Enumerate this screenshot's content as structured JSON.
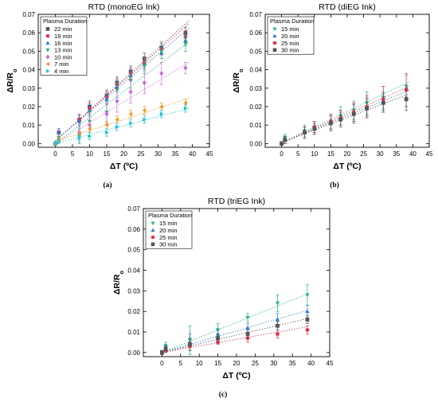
{
  "chart_data": [
    {
      "type": "scatter",
      "id": "a",
      "caption": "(a)",
      "title": "RTD (monoEG Ink)",
      "xlabel": "ΔT (ºC)",
      "ylabel": "ΔR/R",
      "ylabel_sub": "o",
      "xlim": [
        -5,
        45
      ],
      "ylim": [
        -0.002,
        0.07
      ],
      "xticks": [
        "0",
        "5",
        "10",
        "15",
        "20",
        "25",
        "30",
        "35",
        "40",
        "45"
      ],
      "yticks": [
        "0.00",
        "0.01",
        "0.02",
        "0.03",
        "0.04",
        "0.05",
        "0.06",
        "0.07"
      ],
      "legend_title": "Plasma Duration",
      "legend_position": "top-left",
      "series": [
        {
          "name": "22 min",
          "color": "#555555",
          "marker": "square",
          "x": [
            0,
            1,
            7,
            10,
            15,
            18,
            22,
            26,
            31,
            38
          ],
          "y": [
            0.0,
            0.006,
            0.013,
            0.02,
            0.026,
            0.033,
            0.039,
            0.046,
            0.052,
            0.06
          ],
          "err": [
            0.001,
            0.002,
            0.003,
            0.003,
            0.003,
            0.003,
            0.003,
            0.003,
            0.003,
            0.003
          ],
          "fit": [
            [
              0,
              0.0015
            ],
            [
              39,
              0.0665
            ]
          ]
        },
        {
          "name": "19 min",
          "color": "#e8334a",
          "marker": "circle",
          "x": [
            0,
            1,
            7,
            10,
            15,
            18,
            22,
            26,
            31,
            38
          ],
          "y": [
            0.0,
            0.006,
            0.013,
            0.019,
            0.025,
            0.032,
            0.038,
            0.044,
            0.051,
            0.058
          ],
          "err": [
            0.001,
            0.002,
            0.003,
            0.003,
            0.003,
            0.003,
            0.003,
            0.003,
            0.003,
            0.003
          ],
          "fit": [
            [
              0,
              0.0015
            ],
            [
              39,
              0.065
            ]
          ]
        },
        {
          "name": "16 min",
          "color": "#2b7bd6",
          "marker": "triangle-up",
          "x": [
            0,
            1,
            7,
            10,
            15,
            18,
            22,
            26,
            31,
            38
          ],
          "y": [
            0.0,
            0.006,
            0.012,
            0.018,
            0.024,
            0.031,
            0.037,
            0.043,
            0.049,
            0.056
          ],
          "err": [
            0.001,
            0.002,
            0.003,
            0.003,
            0.003,
            0.003,
            0.003,
            0.003,
            0.003,
            0.003
          ],
          "fit": [
            [
              0,
              0.0015
            ],
            [
              39,
              0.0625
            ]
          ]
        },
        {
          "name": "13 min",
          "color": "#24b37a",
          "marker": "triangle-down",
          "x": [
            0,
            1,
            7,
            10,
            15,
            18,
            22,
            26,
            31,
            38
          ],
          "y": [
            0.0,
            0.003,
            0.004,
            0.012,
            0.017,
            0.029,
            0.034,
            0.042,
            0.05,
            0.054
          ],
          "err": [
            0.001,
            0.002,
            0.004,
            0.006,
            0.006,
            0.004,
            0.004,
            0.004,
            0.004,
            0.004
          ],
          "fit": [
            [
              0,
              0.0
            ],
            [
              39,
              0.055
            ]
          ]
        },
        {
          "name": "10 min",
          "color": "#c86ed8",
          "marker": "diamond",
          "x": [
            0,
            1,
            7,
            10,
            15,
            18,
            22,
            26,
            31,
            38
          ],
          "y": [
            0.0,
            0.002,
            0.006,
            0.01,
            0.016,
            0.023,
            0.028,
            0.033,
            0.038,
            0.041
          ],
          "err": [
            0.001,
            0.002,
            0.004,
            0.004,
            0.005,
            0.006,
            0.006,
            0.006,
            0.006,
            0.003
          ],
          "fit": [
            [
              0,
              0.0
            ],
            [
              39,
              0.044
            ]
          ]
        },
        {
          "name": "7 min",
          "color": "#f0961e",
          "marker": "triangle-left",
          "x": [
            0,
            1,
            7,
            10,
            15,
            18,
            22,
            26,
            31,
            38
          ],
          "y": [
            0.0,
            0.002,
            0.005,
            0.008,
            0.01,
            0.013,
            0.016,
            0.018,
            0.02,
            0.022
          ],
          "err": [
            0.001,
            0.002,
            0.002,
            0.002,
            0.002,
            0.002,
            0.002,
            0.002,
            0.002,
            0.002
          ],
          "fit": [
            [
              0,
              0.001
            ],
            [
              39,
              0.0245
            ]
          ]
        },
        {
          "name": "4 min",
          "color": "#1ec4d4",
          "marker": "triangle-right",
          "x": [
            0,
            1,
            7,
            10,
            15,
            18,
            22,
            26,
            31,
            38
          ],
          "y": [
            0.0,
            0.001,
            0.003,
            0.004,
            0.006,
            0.009,
            0.011,
            0.013,
            0.016,
            0.019
          ],
          "err": [
            0.001,
            0.001,
            0.002,
            0.002,
            0.002,
            0.002,
            0.002,
            0.002,
            0.002,
            0.002
          ],
          "fit": [
            [
              0,
              0.0
            ],
            [
              39,
              0.019
            ]
          ]
        }
      ]
    },
    {
      "type": "scatter",
      "id": "b",
      "caption": "(b)",
      "title": "RTD (diEG Ink)",
      "xlabel": "ΔT (ºC)",
      "ylabel": "ΔR/R",
      "ylabel_sub": "o",
      "xlim": [
        -5,
        45
      ],
      "ylim": [
        -0.002,
        0.07
      ],
      "xticks": [
        "0",
        "5",
        "10",
        "15",
        "20",
        "25",
        "30",
        "35",
        "40",
        "45"
      ],
      "yticks": [
        "0.00",
        "0.01",
        "0.02",
        "0.03",
        "0.04",
        "0.05",
        "0.06",
        "0.07"
      ],
      "legend_title": "Plasma Duration",
      "legend_position": "top-left",
      "series": [
        {
          "name": "15 min",
          "color": "#24b37a",
          "marker": "triangle-down",
          "x": [
            0,
            1,
            7,
            10,
            15,
            18,
            22,
            26,
            31,
            38
          ],
          "y": [
            0.0,
            0.003,
            0.007,
            0.009,
            0.012,
            0.015,
            0.018,
            0.022,
            0.025,
            0.031
          ],
          "err": [
            0.001,
            0.002,
            0.003,
            0.003,
            0.004,
            0.005,
            0.005,
            0.006,
            0.006,
            0.006
          ],
          "fit": [
            [
              0,
              0.0005
            ],
            [
              39,
              0.0335
            ]
          ]
        },
        {
          "name": "20 min",
          "color": "#2b7bd6",
          "marker": "triangle-up",
          "x": [
            0,
            1,
            7,
            10,
            15,
            18,
            22,
            26,
            31,
            38
          ],
          "y": [
            0.0,
            0.002,
            0.006,
            0.008,
            0.011,
            0.014,
            0.017,
            0.02,
            0.023,
            0.025
          ],
          "err": [
            0.001,
            0.002,
            0.003,
            0.003,
            0.004,
            0.004,
            0.005,
            0.005,
            0.005,
            0.005
          ],
          "fit": [
            [
              0,
              0.0005
            ],
            [
              39,
              0.029
            ]
          ]
        },
        {
          "name": "25 min",
          "color": "#e8334a",
          "marker": "circle",
          "x": [
            0,
            1,
            7,
            10,
            15,
            18,
            22,
            26,
            31,
            38
          ],
          "y": [
            0.0,
            0.002,
            0.006,
            0.009,
            0.012,
            0.014,
            0.017,
            0.02,
            0.024,
            0.029
          ],
          "err": [
            0.001,
            0.002,
            0.003,
            0.003,
            0.004,
            0.004,
            0.005,
            0.006,
            0.007,
            0.009
          ],
          "fit": [
            [
              0,
              0.0005
            ],
            [
              39,
              0.031
            ]
          ]
        },
        {
          "name": "30 min",
          "color": "#555555",
          "marker": "square",
          "x": [
            0,
            1,
            7,
            10,
            15,
            18,
            22,
            26,
            31,
            38
          ],
          "y": [
            0.0,
            0.002,
            0.006,
            0.008,
            0.011,
            0.013,
            0.016,
            0.019,
            0.022,
            0.024
          ],
          "err": [
            0.001,
            0.002,
            0.003,
            0.003,
            0.004,
            0.004,
            0.005,
            0.005,
            0.005,
            0.006
          ],
          "fit": [
            [
              0,
              0.0005
            ],
            [
              39,
              0.027
            ]
          ]
        }
      ]
    },
    {
      "type": "scatter",
      "id": "c",
      "caption": "(c)",
      "title": "RTD (triEG Ink)",
      "xlabel": "ΔT (ºC)",
      "ylabel": "ΔR/R",
      "ylabel_sub": "o",
      "xlim": [
        -5,
        45
      ],
      "ylim": [
        -0.002,
        0.07
      ],
      "xticks": [
        "0",
        "5",
        "10",
        "15",
        "20",
        "25",
        "30",
        "35",
        "40",
        "45"
      ],
      "yticks": [
        "0.00",
        "0.01",
        "0.02",
        "0.03",
        "0.04",
        "0.05",
        "0.06",
        "0.07"
      ],
      "legend_title": "Plasma Duration",
      "legend_position": "top-left",
      "series": [
        {
          "name": "15 min",
          "color": "#24b37a",
          "marker": "triangle-down",
          "x": [
            0,
            1,
            7.5,
            15,
            23,
            31,
            39
          ],
          "y": [
            0.0,
            0.003,
            0.006,
            0.011,
            0.017,
            0.024,
            0.028
          ],
          "err": [
            0.001,
            0.002,
            0.007,
            0.003,
            0.002,
            0.004,
            0.005
          ],
          "fit": [
            [
              0,
              0.0
            ],
            [
              39,
              0.0285
            ]
          ]
        },
        {
          "name": "20 min",
          "color": "#2b7bd6",
          "marker": "triangle-up",
          "x": [
            0,
            1,
            7.5,
            15,
            23,
            31,
            39
          ],
          "y": [
            0.0,
            0.002,
            0.005,
            0.009,
            0.012,
            0.016,
            0.02
          ],
          "err": [
            0.001,
            0.002,
            0.004,
            0.002,
            0.002,
            0.003,
            0.003
          ],
          "fit": [
            [
              0,
              0.0
            ],
            [
              39,
              0.0205
            ]
          ]
        },
        {
          "name": "25 min",
          "color": "#e8334a",
          "marker": "circle",
          "x": [
            0,
            1,
            7.5,
            15,
            23,
            31,
            39
          ],
          "y": [
            0.0,
            0.001,
            0.003,
            0.005,
            0.007,
            0.009,
            0.011
          ],
          "err": [
            0.001,
            0.001,
            0.002,
            0.001,
            0.002,
            0.002,
            0.002
          ],
          "fit": [
            [
              0,
              0.0
            ],
            [
              39,
              0.0125
            ]
          ]
        },
        {
          "name": "30 min",
          "color": "#555555",
          "marker": "square",
          "x": [
            0,
            1,
            7.5,
            15,
            23,
            31,
            39
          ],
          "y": [
            0.0,
            0.002,
            0.004,
            0.007,
            0.009,
            0.013,
            0.016
          ],
          "err": [
            0.001,
            0.001,
            0.003,
            0.002,
            0.002,
            0.002,
            0.002
          ],
          "fit": [
            [
              0,
              0.0
            ],
            [
              39,
              0.0165
            ]
          ]
        }
      ]
    }
  ]
}
